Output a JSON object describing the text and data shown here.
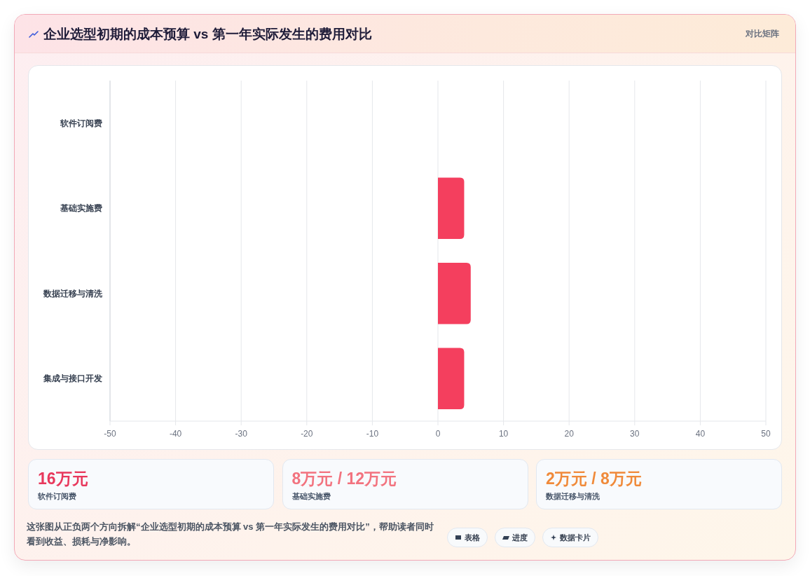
{
  "chart_data": {
    "type": "bar",
    "orientation": "horizontal",
    "title": "企业选型初期的成本预算 vs 第一年实际发生的费用对比",
    "categories": [
      "软件订阅费",
      "基础实施费",
      "数据迁移与清洗",
      "集成与接口开发"
    ],
    "values": [
      null,
      4,
      5,
      4
    ],
    "color": "#f43f5e",
    "xlim": [
      -50,
      50
    ],
    "xticks": [
      -50,
      -40,
      -30,
      -20,
      -10,
      0,
      10,
      20,
      30,
      40,
      50
    ],
    "grid": "x",
    "annotations": [
      "对比矩阵",
      "16万元",
      "软件订阅费",
      "8万元 / 12万元",
      "基础实施费",
      "2万元 / 8万元",
      "数据迁移与清洗",
      "这张图从正负两个方向拆解“企业选型初期的成本预算 vs 第一年实际发生的费用对比”，帮助读者同时看到收益、损耗与净影响。",
      "表格",
      "进度",
      "数据卡片"
    ]
  }
}
